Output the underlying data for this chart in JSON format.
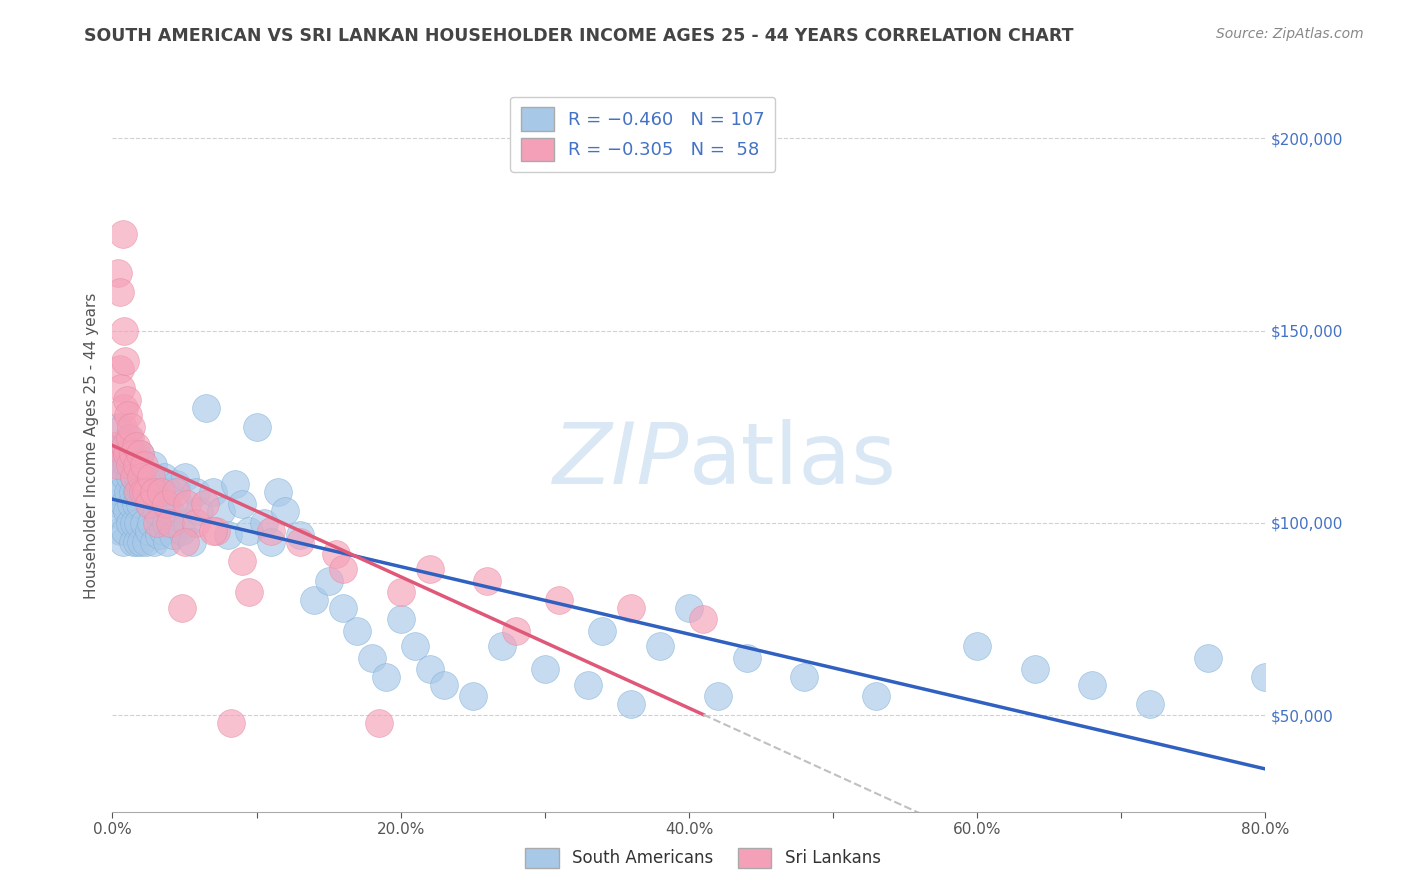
{
  "title": "SOUTH AMERICAN VS SRI LANKAN HOUSEHOLDER INCOME AGES 25 - 44 YEARS CORRELATION CHART",
  "source": "Source: ZipAtlas.com",
  "ylabel": "Householder Income Ages 25 - 44 years",
  "xlim": [
    0.0,
    0.8
  ],
  "ylim": [
    25000,
    215000
  ],
  "yticks": [
    50000,
    100000,
    150000,
    200000
  ],
  "ytick_labels": [
    "$50,000",
    "$100,000",
    "$150,000",
    "$200,000"
  ],
  "xticks": [
    0.0,
    0.1,
    0.2,
    0.3,
    0.4,
    0.5,
    0.6,
    0.7,
    0.8
  ],
  "xtick_labels": [
    "0.0%",
    "",
    "20.0%",
    "",
    "40.0%",
    "",
    "60.0%",
    "",
    "80.0%"
  ],
  "bg_color": "#ffffff",
  "grid_color": "#cccccc",
  "blue_color": "#a8c8e8",
  "pink_color": "#f4a0b8",
  "blue_line_color": "#3060c0",
  "pink_line_color": "#e05878",
  "dash_color": "#c0c0c0",
  "watermark_text": "ZIPatlas",
  "watermark_color": "#dae8f5",
  "legend_line1": "R = -0.460   N = 107",
  "legend_line2": "R = -0.305   N =  58",
  "south_american_label": "South Americans",
  "sri_lankan_label": "Sri Lankans",
  "south_x": [
    0.002,
    0.003,
    0.004,
    0.004,
    0.005,
    0.005,
    0.006,
    0.006,
    0.007,
    0.007,
    0.008,
    0.008,
    0.009,
    0.009,
    0.01,
    0.01,
    0.011,
    0.011,
    0.012,
    0.012,
    0.013,
    0.013,
    0.014,
    0.014,
    0.015,
    0.015,
    0.016,
    0.016,
    0.017,
    0.017,
    0.018,
    0.018,
    0.019,
    0.019,
    0.02,
    0.02,
    0.021,
    0.022,
    0.023,
    0.024,
    0.025,
    0.025,
    0.026,
    0.027,
    0.028,
    0.029,
    0.03,
    0.031,
    0.032,
    0.033,
    0.034,
    0.035,
    0.036,
    0.037,
    0.038,
    0.039,
    0.04,
    0.042,
    0.044,
    0.046,
    0.048,
    0.05,
    0.052,
    0.055,
    0.058,
    0.06,
    0.065,
    0.07,
    0.075,
    0.08,
    0.085,
    0.09,
    0.095,
    0.1,
    0.105,
    0.11,
    0.115,
    0.12,
    0.13,
    0.14,
    0.15,
    0.16,
    0.17,
    0.18,
    0.19,
    0.2,
    0.21,
    0.22,
    0.23,
    0.25,
    0.27,
    0.3,
    0.33,
    0.36,
    0.4,
    0.44,
    0.48,
    0.53,
    0.6,
    0.64,
    0.68,
    0.72,
    0.76,
    0.8,
    0.34,
    0.38,
    0.42
  ],
  "south_y": [
    118000,
    112000,
    105000,
    125000,
    108000,
    98000,
    115000,
    102000,
    120000,
    95000,
    118000,
    105000,
    112000,
    98000,
    115000,
    103000,
    108000,
    122000,
    100000,
    112000,
    105000,
    118000,
    95000,
    108000,
    112000,
    100000,
    105000,
    118000,
    95000,
    108000,
    112000,
    100000,
    105000,
    118000,
    95000,
    108000,
    112000,
    100000,
    95000,
    108000,
    112000,
    98000,
    105000,
    100000,
    115000,
    95000,
    108000,
    103000,
    97000,
    110000,
    105000,
    98000,
    112000,
    100000,
    95000,
    108000,
    103000,
    97000,
    110000,
    105000,
    98000,
    112000,
    100000,
    95000,
    108000,
    103000,
    130000,
    108000,
    103000,
    97000,
    110000,
    105000,
    98000,
    125000,
    100000,
    95000,
    108000,
    103000,
    97000,
    80000,
    85000,
    78000,
    72000,
    65000,
    60000,
    75000,
    68000,
    62000,
    58000,
    55000,
    68000,
    62000,
    58000,
    53000,
    78000,
    65000,
    60000,
    55000,
    68000,
    62000,
    58000,
    53000,
    65000,
    60000,
    72000,
    68000,
    55000
  ],
  "sri_x": [
    0.002,
    0.003,
    0.004,
    0.005,
    0.005,
    0.006,
    0.007,
    0.007,
    0.008,
    0.008,
    0.009,
    0.009,
    0.01,
    0.01,
    0.011,
    0.012,
    0.012,
    0.013,
    0.014,
    0.015,
    0.016,
    0.017,
    0.018,
    0.019,
    0.02,
    0.021,
    0.022,
    0.023,
    0.025,
    0.027,
    0.029,
    0.031,
    0.034,
    0.037,
    0.04,
    0.044,
    0.048,
    0.052,
    0.058,
    0.064,
    0.072,
    0.082,
    0.095,
    0.11,
    0.13,
    0.155,
    0.185,
    0.22,
    0.26,
    0.31,
    0.36,
    0.41,
    0.05,
    0.07,
    0.09,
    0.28,
    0.16,
    0.2
  ],
  "sri_y": [
    120000,
    115000,
    165000,
    140000,
    160000,
    135000,
    125000,
    175000,
    150000,
    130000,
    120000,
    142000,
    132000,
    118000,
    128000,
    122000,
    115000,
    125000,
    118000,
    112000,
    120000,
    115000,
    108000,
    118000,
    112000,
    108000,
    115000,
    108000,
    105000,
    112000,
    108000,
    100000,
    108000,
    105000,
    100000,
    108000,
    78000,
    105000,
    100000,
    105000,
    98000,
    48000,
    82000,
    98000,
    95000,
    92000,
    48000,
    88000,
    85000,
    80000,
    78000,
    75000,
    95000,
    98000,
    90000,
    72000,
    88000,
    82000
  ]
}
